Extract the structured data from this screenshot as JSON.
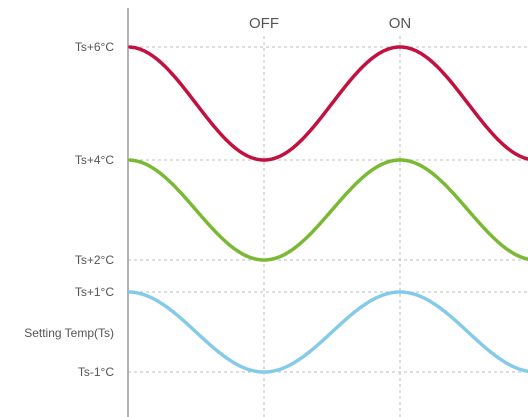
{
  "chart_data": {
    "type": "line",
    "title": "",
    "xlabel": "",
    "ylabel": "",
    "top_labels": [
      "OFF",
      "ON"
    ],
    "y_ticks": [
      {
        "label": "Ts+6°C",
        "value": 6
      },
      {
        "label": "Ts+4°C",
        "value": 4
      },
      {
        "label": "Ts+2°C",
        "value": 2
      },
      {
        "label": "Ts+1°C",
        "value": 1
      },
      {
        "label": "Setting Temp(Ts)",
        "value": 0
      },
      {
        "label": "Ts-1°C",
        "value": -1
      }
    ],
    "grid": true,
    "series": [
      {
        "color": "#c4103f",
        "high": 6,
        "low": 4
      },
      {
        "color": "#79b933",
        "high": 4,
        "low": 2
      },
      {
        "color": "#85cbe9",
        "high": 1,
        "low": -1
      }
    ]
  }
}
